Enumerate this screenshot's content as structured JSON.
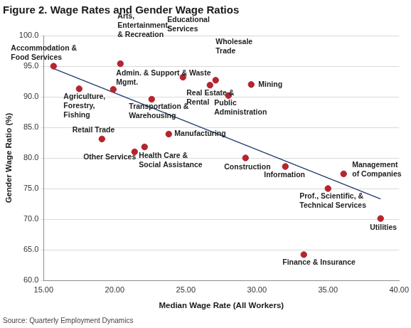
{
  "chart_data": {
    "type": "scatter",
    "title": "Figure 2. Wage Rates and Gender Wage Ratios",
    "source": "Source: Quarterly Employment Dynamics",
    "x_label": "Median Wage Rate (All Workers)",
    "y_label": "Gender Wage Ratio (%)",
    "xlim": [
      15,
      40
    ],
    "xticks": [
      {
        "value": 15,
        "label": "15.00"
      },
      {
        "value": 20,
        "label": "20.00"
      },
      {
        "value": 25,
        "label": "25.00"
      },
      {
        "value": 30,
        "label": "30.00"
      },
      {
        "value": 35,
        "label": "35.00"
      },
      {
        "value": 40,
        "label": "40.00"
      }
    ],
    "ylim": [
      60,
      100
    ],
    "yticks": [
      {
        "value": 60,
        "label": "60.0"
      },
      {
        "value": 65,
        "label": "65.0"
      },
      {
        "value": 70,
        "label": "70.0"
      },
      {
        "value": 75,
        "label": "75.0"
      },
      {
        "value": 80,
        "label": "80.0"
      },
      {
        "value": 85,
        "label": "85.0"
      },
      {
        "value": 90,
        "label": "90.0"
      },
      {
        "value": 95,
        "label": "95.0"
      },
      {
        "value": 100,
        "label": "100.0"
      }
    ],
    "grid": "y",
    "series": [
      {
        "type": "scatter",
        "color": "#b5252f",
        "marker": "circle",
        "x": [
          15.7,
          17.5,
          19.1,
          19.9,
          20.4,
          21.4,
          22.1,
          22.6,
          23.8,
          24.8,
          26.7,
          27.1,
          28.0,
          29.6,
          29.2,
          32.0,
          33.3,
          35.0,
          36.1,
          38.7
        ],
        "values": [
          95.0,
          91.3,
          83.1,
          91.2,
          95.4,
          81.0,
          81.8,
          89.6,
          83.9,
          93.2,
          91.9,
          92.7,
          90.2,
          92.0,
          80.0,
          78.6,
          64.2,
          75.0,
          77.4,
          70.1
        ],
        "point_labels": [
          [
            "Accommodation &",
            "Food Services"
          ],
          [
            "Agriculture,",
            "Forestry,",
            "Fishing"
          ],
          [
            "Retail Trade"
          ],
          [
            "Admin. & Support & Waste",
            "Mgmt."
          ],
          [
            "Arts,",
            "Entertainment,",
            "& Recreation"
          ],
          [
            "Other Services"
          ],
          [
            "Health Care &",
            "Social Assistance"
          ],
          [
            "Transportation &",
            "Warehousing"
          ],
          [
            "Manufacturing"
          ],
          [
            "Educational",
            "Services"
          ],
          [
            "Real Estate &",
            "Rental"
          ],
          [
            "Wholesale",
            "Trade"
          ],
          [
            "Public",
            "Administration"
          ],
          [
            "Mining"
          ],
          [
            "Construction"
          ],
          [
            "Information"
          ],
          [
            "Finance & Insurance"
          ],
          [
            "Prof., Scientific, &",
            "Technical Services"
          ],
          [
            "Management",
            "of Companies"
          ],
          [
            "Utilities"
          ]
        ]
      },
      {
        "type": "line",
        "color": "#1f3c6e",
        "line_style": "solid",
        "x": [
          15.7,
          38.7
        ],
        "values": [
          94.6,
          73.3
        ]
      }
    ]
  }
}
